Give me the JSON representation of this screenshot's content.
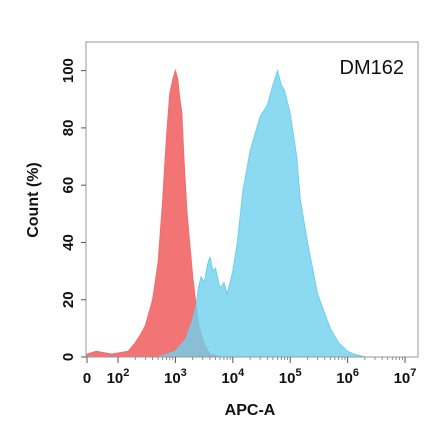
{
  "chart_data": {
    "type": "area",
    "title": "DM162",
    "xlabel": "APC-A",
    "ylabel": "Count  (%)",
    "x_scale": "log",
    "xlim": [
      0,
      10000000
    ],
    "ylim": [
      0,
      110
    ],
    "x_tick_labels": [
      {
        "value": 0,
        "base": "0",
        "exp": ""
      },
      {
        "value": 100,
        "base": "10",
        "exp": "2"
      },
      {
        "value": 1000,
        "base": "10",
        "exp": "3"
      },
      {
        "value": 10000,
        "base": "10",
        "exp": "4"
      },
      {
        "value": 100000,
        "base": "10",
        "exp": "5"
      },
      {
        "value": 1000000,
        "base": "10",
        "exp": "6"
      },
      {
        "value": 10000000,
        "base": "10",
        "exp": "7"
      }
    ],
    "y_ticks": [
      0,
      20,
      40,
      60,
      80,
      100
    ],
    "grid": false,
    "colors": {
      "control": "#f26d6d",
      "sample": "#6fcfef"
    },
    "series": [
      {
        "key": "control",
        "x": [
          0,
          30,
          80,
          150,
          200,
          250,
          300,
          400,
          500,
          600,
          700,
          800,
          900,
          1000,
          1100,
          1200,
          1300,
          1400,
          1600,
          2000,
          2500,
          3000,
          3500,
          4000,
          5000,
          6000
        ],
        "y": [
          1,
          2,
          1,
          2,
          5,
          8,
          11,
          20,
          33,
          55,
          77,
          92,
          97,
          100,
          97,
          90,
          85,
          70,
          50,
          28,
          12,
          6,
          3,
          1,
          0.5,
          0
        ]
      },
      {
        "key": "sample",
        "x": [
          500,
          1000,
          1500,
          2000,
          2300,
          2500,
          2800,
          3200,
          3600,
          4000,
          4500,
          5000,
          6000,
          7000,
          8000,
          10000,
          12000,
          15000,
          20000,
          30000,
          40000,
          50000,
          60000,
          70000,
          80000,
          100000,
          130000,
          150000,
          200000,
          300000,
          500000,
          700000,
          1000000,
          1300000,
          2000000
        ],
        "y": [
          0,
          2,
          6,
          13,
          18,
          24,
          28,
          26,
          32,
          35,
          30,
          31,
          24,
          26,
          22,
          30,
          40,
          58,
          72,
          84,
          88,
          95,
          100,
          95,
          93,
          85,
          70,
          55,
          40,
          22,
          10,
          5,
          2,
          1,
          0
        ]
      }
    ]
  }
}
